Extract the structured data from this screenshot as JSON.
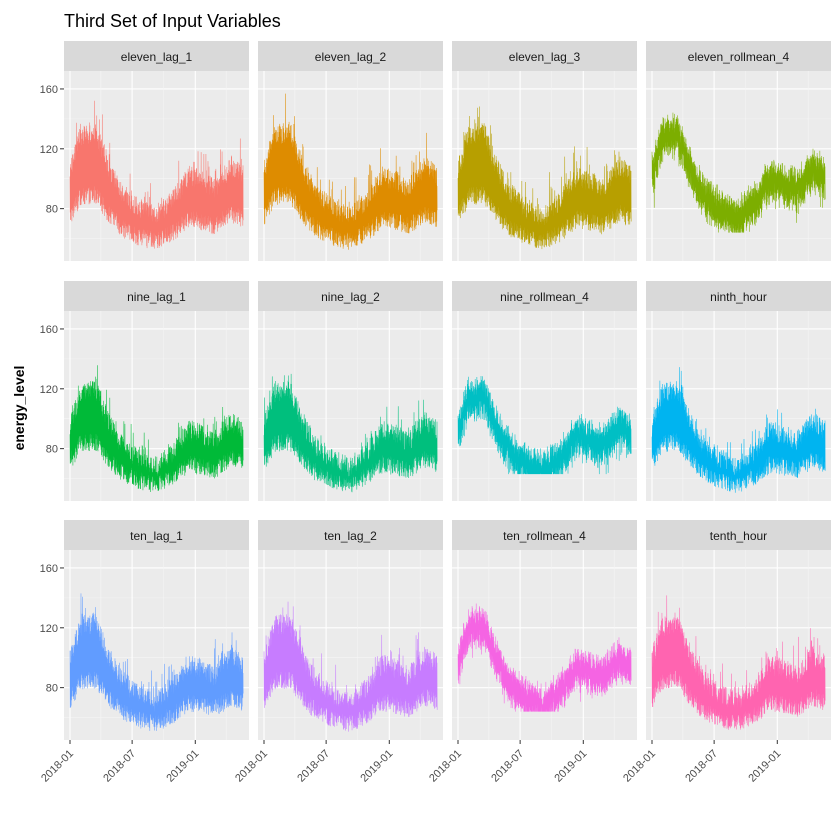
{
  "chart_data": {
    "type": "line",
    "title": "Third Set of Input Variables",
    "xlabel": "",
    "ylabel": "energy_level",
    "x_range": [
      "2018-01-01",
      "2019-05-20"
    ],
    "x_ticks": [
      "2018-01",
      "2018-07",
      "2019-01"
    ],
    "y_ticks": [
      80,
      120,
      160
    ],
    "ylim": [
      45,
      172
    ],
    "grid": true,
    "legend": "none",
    "facet_layout": "3 rows x 4 columns, shared axes",
    "panels": [
      {
        "name": "eleven_lag_1",
        "color": "#F8766D",
        "kind": "lag",
        "base_peak": 136,
        "spike": 20,
        "low": 52
      },
      {
        "name": "eleven_lag_2",
        "color": "#DE8C00",
        "kind": "lag",
        "base_peak": 136,
        "spike": 20,
        "low": 52
      },
      {
        "name": "eleven_lag_3",
        "color": "#B79F00",
        "kind": "lag",
        "base_peak": 136,
        "spike": 20,
        "low": 52
      },
      {
        "name": "eleven_rollmean_4",
        "color": "#7CAE00",
        "kind": "roll",
        "base_peak": 136,
        "spike": 12,
        "low": 64
      },
      {
        "name": "nine_lag_1",
        "color": "#00BA38",
        "kind": "lag",
        "base_peak": 124,
        "spike": 17,
        "low": 50
      },
      {
        "name": "nine_lag_2",
        "color": "#00BF7D",
        "kind": "lag",
        "base_peak": 124,
        "spike": 17,
        "low": 50
      },
      {
        "name": "nine_rollmean_4",
        "color": "#00BFC4",
        "kind": "roll",
        "base_peak": 122,
        "spike": 10,
        "low": 63
      },
      {
        "name": "ninth_hour",
        "color": "#00B4F0",
        "kind": "lag",
        "base_peak": 124,
        "spike": 17,
        "low": 50
      },
      {
        "name": "ten_lag_1",
        "color": "#619CFF",
        "kind": "lag",
        "base_peak": 128,
        "spike": 19,
        "low": 50
      },
      {
        "name": "ten_lag_2",
        "color": "#C77CFF",
        "kind": "lag",
        "base_peak": 128,
        "spike": 19,
        "low": 50
      },
      {
        "name": "ten_rollmean_4",
        "color": "#F564E3",
        "kind": "roll",
        "base_peak": 128,
        "spike": 10,
        "low": 64
      },
      {
        "name": "tenth_hour",
        "color": "#FF64B0",
        "kind": "lag",
        "base_peak": 128,
        "spike": 19,
        "low": 50
      }
    ]
  }
}
